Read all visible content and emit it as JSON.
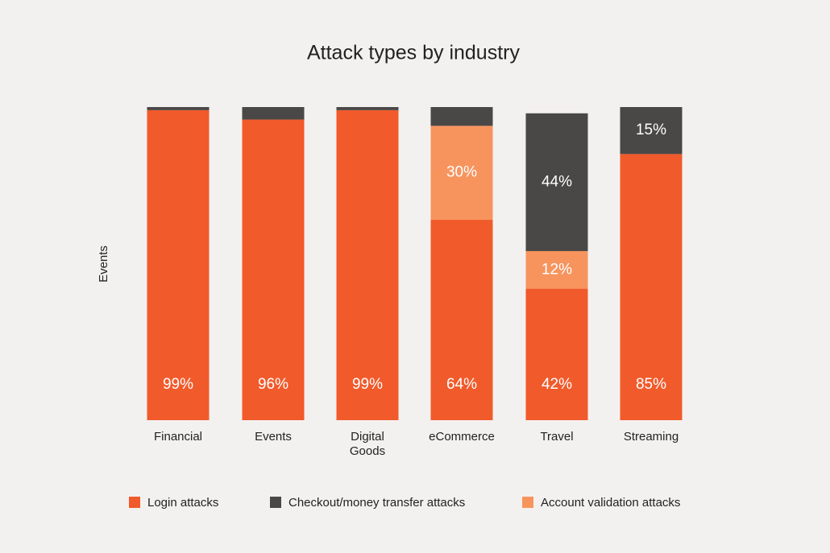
{
  "chart_data": {
    "type": "stacked_bar",
    "title": "Attack types by industry",
    "y_label": "Events",
    "categories": [
      "Financial",
      "Events",
      "Digital Goods",
      "eCommerce",
      "Travel",
      "Streaming"
    ],
    "ylim": [
      0,
      100
    ],
    "series": [
      {
        "name": "Login attacks",
        "color": "#f15a2b",
        "values": [
          99,
          96,
          99,
          64,
          42,
          85
        ],
        "value_labels": [
          "99%",
          "96%",
          "99%",
          "64%",
          "42%",
          "85%"
        ]
      },
      {
        "name": "Account validation attacks",
        "color": "#f7945e",
        "values": [
          0,
          0,
          0,
          30,
          12,
          0
        ],
        "value_labels": [
          null,
          null,
          null,
          "30%",
          "12%",
          null
        ]
      },
      {
        "name": "Checkout/money transfer attacks",
        "color": "#4a4846",
        "values": [
          1,
          4,
          1,
          6,
          44,
          15
        ],
        "value_labels": [
          null,
          null,
          null,
          null,
          "44%",
          "15%"
        ]
      }
    ],
    "legend_order": [
      0,
      2,
      1
    ]
  }
}
